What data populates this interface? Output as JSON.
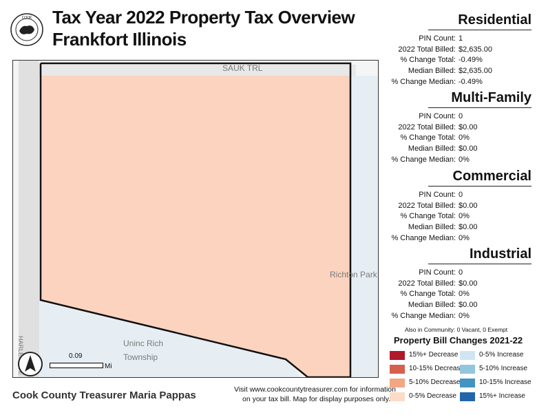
{
  "header": {
    "title_line1": "Tax Year 2022 Property Tax Overview",
    "title_line2": "Frankfort Illinois"
  },
  "map": {
    "labels": {
      "sauk_trl": "SAUK TRL",
      "richton_park": "Richton Park",
      "uninc_line1": "Uninc Rich",
      "uninc_line2": "Township",
      "harlem_ave": "HARLEM AVE"
    },
    "fill_color": "#fbd3bf",
    "water_color": "#e6eef4",
    "road_color": "#e2e2e2",
    "boundary_color": "#111111",
    "scale_value": "0.09",
    "scale_unit": "Mi"
  },
  "sections": [
    {
      "title": "Residential",
      "pin_count": "1",
      "total_billed": "$2,635.00",
      "pct_change_total": "-0.49%",
      "median_billed": "$2,635.00",
      "pct_change_median": "-0.49%"
    },
    {
      "title": "Multi-Family",
      "pin_count": "0",
      "total_billed": "$0.00",
      "pct_change_total": "0%",
      "median_billed": "$0.00",
      "pct_change_median": "0%"
    },
    {
      "title": "Commercial",
      "pin_count": "0",
      "total_billed": "$0.00",
      "pct_change_total": "0%",
      "median_billed": "$0.00",
      "pct_change_median": "0%"
    },
    {
      "title": "Industrial",
      "pin_count": "0",
      "total_billed": "$0.00",
      "pct_change_total": "0%",
      "median_billed": "$0.00",
      "pct_change_median": "0%"
    }
  ],
  "row_labels": {
    "pin_count": "PIN Count:",
    "total_billed": "2022 Total Billed:",
    "pct_change_total": "% Change Total:",
    "median_billed": "Median Billed:",
    "pct_change_median": "% Change Median:"
  },
  "also_in_community": "Also in Community: 0 Vacant, 0 Exempt",
  "legend": {
    "title": "Property Bill Changes 2021-22",
    "decrease": [
      {
        "label": "15%+ Decrease",
        "color": "#b2182b"
      },
      {
        "label": "10-15% Decrease",
        "color": "#d6604d"
      },
      {
        "label": "5-10% Decrease",
        "color": "#f4a582"
      },
      {
        "label": "0-5% Decrease",
        "color": "#fddbc7"
      }
    ],
    "increase": [
      {
        "label": "0-5% Increase",
        "color": "#d1e5f0"
      },
      {
        "label": "5-10% Increase",
        "color": "#92c5de"
      },
      {
        "label": "10-15% Increase",
        "color": "#4393c3"
      },
      {
        "label": "15%+ Increase",
        "color": "#2166ac"
      }
    ]
  },
  "footer": {
    "name": "Cook County Treasurer Maria Pappas",
    "note_line1": "Visit www.cookcountytreasurer.com for information",
    "note_line2": "on your tax bill. Map for display purposes only."
  }
}
